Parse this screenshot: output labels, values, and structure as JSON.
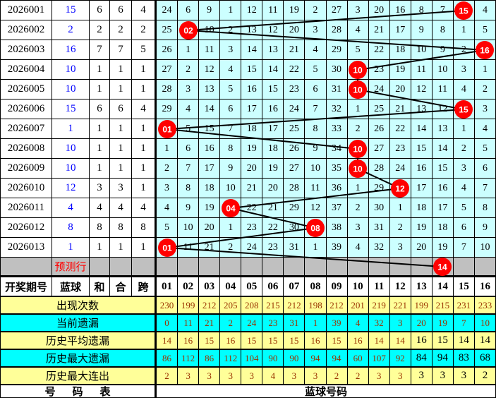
{
  "left_table": {
    "headers": [
      "开奖期号",
      "蓝球",
      "和",
      "合",
      "跨"
    ],
    "rows": [
      {
        "period": "2026001",
        "blue": "15",
        "he": "6",
        "hezhi": "6",
        "kua": "4"
      },
      {
        "period": "2026002",
        "blue": "2",
        "he": "2",
        "hezhi": "2",
        "kua": "2"
      },
      {
        "period": "2026003",
        "blue": "16",
        "he": "7",
        "hezhi": "7",
        "kua": "5"
      },
      {
        "period": "2026004",
        "blue": "10",
        "he": "1",
        "hezhi": "1",
        "kua": "1"
      },
      {
        "period": "2026005",
        "blue": "10",
        "he": "1",
        "hezhi": "1",
        "kua": "1"
      },
      {
        "period": "2026006",
        "blue": "15",
        "he": "6",
        "hezhi": "6",
        "kua": "4"
      },
      {
        "period": "2026007",
        "blue": "1",
        "he": "1",
        "hezhi": "1",
        "kua": "1"
      },
      {
        "period": "2026008",
        "blue": "10",
        "he": "1",
        "hezhi": "1",
        "kua": "1"
      },
      {
        "period": "2026009",
        "blue": "10",
        "he": "1",
        "hezhi": "1",
        "kua": "1"
      },
      {
        "period": "2026010",
        "blue": "12",
        "he": "3",
        "hezhi": "3",
        "kua": "1"
      },
      {
        "period": "2026011",
        "blue": "4",
        "he": "4",
        "hezhi": "4",
        "kua": "4"
      },
      {
        "period": "2026012",
        "blue": "8",
        "he": "8",
        "hezhi": "8",
        "kua": "8"
      },
      {
        "period": "2026013",
        "blue": "1",
        "he": "1",
        "hezhi": "1",
        "kua": "1"
      }
    ],
    "prediction_label": "预测行"
  },
  "grid": {
    "col_headers": [
      "01",
      "02",
      "03",
      "04",
      "05",
      "06",
      "07",
      "08",
      "09",
      "10",
      "11",
      "12",
      "13",
      "14",
      "15",
      "16"
    ],
    "rows": [
      {
        "ball": 15,
        "cells": [
          24,
          6,
          9,
          1,
          12,
          11,
          19,
          2,
          27,
          3,
          20,
          16,
          8,
          7,
          null,
          4
        ]
      },
      {
        "ball": 2,
        "cells": [
          25,
          null,
          10,
          2,
          13,
          12,
          20,
          3,
          28,
          4,
          21,
          17,
          9,
          8,
          1,
          5
        ]
      },
      {
        "ball": 16,
        "cells": [
          26,
          1,
          11,
          3,
          14,
          13,
          21,
          4,
          29,
          5,
          22,
          18,
          10,
          9,
          2,
          null
        ]
      },
      {
        "ball": 10,
        "cells": [
          27,
          2,
          12,
          4,
          15,
          14,
          22,
          5,
          30,
          null,
          23,
          19,
          11,
          10,
          3,
          1
        ]
      },
      {
        "ball": 10,
        "cells": [
          28,
          3,
          13,
          5,
          16,
          15,
          23,
          6,
          31,
          null,
          24,
          20,
          12,
          11,
          4,
          2
        ]
      },
      {
        "ball": 15,
        "cells": [
          29,
          4,
          14,
          6,
          17,
          16,
          24,
          7,
          32,
          1,
          25,
          21,
          13,
          12,
          null,
          3
        ]
      },
      {
        "ball": 1,
        "cells": [
          null,
          5,
          15,
          7,
          18,
          17,
          25,
          8,
          33,
          2,
          26,
          22,
          14,
          13,
          1,
          4
        ]
      },
      {
        "ball": 10,
        "cells": [
          1,
          6,
          16,
          8,
          19,
          18,
          26,
          9,
          34,
          null,
          27,
          23,
          15,
          14,
          2,
          5
        ]
      },
      {
        "ball": 10,
        "cells": [
          2,
          7,
          17,
          9,
          20,
          19,
          27,
          10,
          35,
          null,
          28,
          24,
          16,
          15,
          3,
          6
        ]
      },
      {
        "ball": 12,
        "cells": [
          3,
          8,
          18,
          10,
          21,
          20,
          28,
          11,
          36,
          1,
          29,
          null,
          17,
          16,
          4,
          7
        ]
      },
      {
        "ball": 4,
        "cells": [
          4,
          9,
          19,
          null,
          22,
          21,
          29,
          12,
          37,
          2,
          30,
          1,
          18,
          17,
          5,
          8
        ]
      },
      {
        "ball": 8,
        "cells": [
          5,
          10,
          20,
          1,
          23,
          22,
          30,
          null,
          38,
          3,
          31,
          2,
          19,
          18,
          6,
          9
        ]
      },
      {
        "ball": 1,
        "cells": [
          null,
          11,
          21,
          2,
          24,
          23,
          31,
          1,
          39,
          4,
          32,
          3,
          20,
          19,
          7,
          10
        ]
      }
    ],
    "prediction_ball": 14
  },
  "stats_rows": [
    {
      "label": "出现次数",
      "bg": "#ffff99",
      "values": [
        230,
        199,
        212,
        205,
        208,
        215,
        212,
        198,
        212,
        201,
        219,
        221,
        199,
        215,
        231,
        233
      ]
    },
    {
      "label": "当前遗漏",
      "bg": "#00ffff",
      "values": [
        0,
        11,
        21,
        2,
        24,
        23,
        31,
        1,
        39,
        4,
        32,
        3,
        20,
        19,
        7,
        10
      ]
    },
    {
      "label": "历史平均遗漏",
      "bg": "#ffff99",
      "black_from": 12,
      "values": [
        14,
        16,
        15,
        16,
        15,
        15,
        15,
        16,
        15,
        16,
        14,
        14,
        16,
        15,
        14,
        14
      ]
    },
    {
      "label": "历史最大遗漏",
      "bg": "#00ffff",
      "black_from": 12,
      "values": [
        86,
        112,
        86,
        112,
        104,
        90,
        90,
        94,
        94,
        60,
        107,
        92,
        84,
        94,
        83,
        68
      ]
    },
    {
      "label": "历史最大连出",
      "bg": "#ffff99",
      "black_from": 12,
      "values": [
        2,
        3,
        3,
        3,
        3,
        4,
        3,
        3,
        2,
        2,
        3,
        3,
        3,
        3,
        3,
        2
      ]
    }
  ],
  "footer": {
    "left_label": "号码表",
    "right_label": "蓝球号码"
  },
  "colors": {
    "grid_bg": "#ccffff",
    "prediction_bg": "#c0c0c0",
    "circle_red": "#ff0000",
    "blue_text": "#0000ff",
    "stat_value": "#993300",
    "yellow_row": "#ffff99",
    "cyan_row": "#00ffff",
    "line": "#000000"
  },
  "chart_data": {
    "type": "table",
    "title": "蓝球走势图",
    "x": [
      "2026001",
      "2026002",
      "2026003",
      "2026004",
      "2026005",
      "2026006",
      "2026007",
      "2026008",
      "2026009",
      "2026010",
      "2026011",
      "2026012",
      "2026013"
    ],
    "series": [
      {
        "name": "蓝球",
        "values": [
          15,
          2,
          16,
          10,
          10,
          15,
          1,
          10,
          10,
          12,
          4,
          8,
          1
        ]
      },
      {
        "name": "和",
        "values": [
          6,
          2,
          7,
          1,
          1,
          6,
          1,
          1,
          1,
          3,
          4,
          8,
          1
        ]
      },
      {
        "name": "合",
        "values": [
          6,
          2,
          7,
          1,
          1,
          6,
          1,
          1,
          1,
          3,
          4,
          8,
          1
        ]
      },
      {
        "name": "跨",
        "values": [
          4,
          2,
          5,
          1,
          1,
          4,
          1,
          1,
          1,
          1,
          4,
          8,
          1
        ]
      }
    ],
    "prediction": {
      "label": "预测行",
      "ball": 14
    },
    "ball_columns": [
      "01",
      "02",
      "03",
      "04",
      "05",
      "06",
      "07",
      "08",
      "09",
      "10",
      "11",
      "12",
      "13",
      "14",
      "15",
      "16"
    ],
    "appearance_counts": [
      230,
      199,
      212,
      205,
      208,
      215,
      212,
      198,
      212,
      201,
      219,
      221,
      199,
      215,
      231,
      233
    ],
    "current_omission": [
      0,
      11,
      21,
      2,
      24,
      23,
      31,
      1,
      39,
      4,
      32,
      3,
      20,
      19,
      7,
      10
    ],
    "avg_omission": [
      14,
      16,
      15,
      16,
      15,
      15,
      15,
      16,
      15,
      16,
      14,
      14,
      16,
      15,
      14,
      14
    ],
    "max_omission": [
      86,
      112,
      86,
      112,
      104,
      90,
      90,
      94,
      94,
      60,
      107,
      92,
      84,
      94,
      83,
      68
    ],
    "max_consecutive": [
      2,
      3,
      3,
      3,
      3,
      4,
      3,
      3,
      2,
      2,
      3,
      3,
      3,
      3,
      3,
      2
    ]
  }
}
